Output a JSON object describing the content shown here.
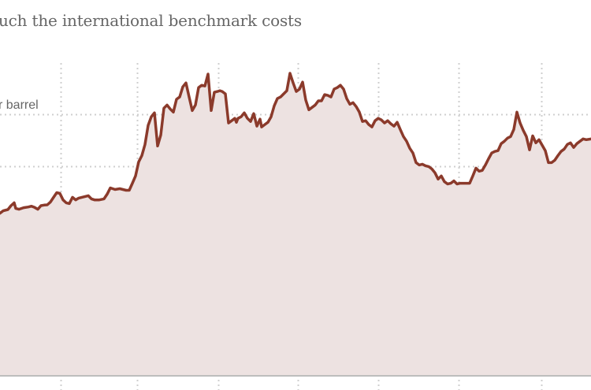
{
  "subtitle": "uch the international benchmark costs",
  "chart_data": {
    "type": "area",
    "unit_label": "r barrel",
    "grid": true,
    "line_color": "#8b3a2b",
    "fill_color": "#ede2e1",
    "grid_color": "#cfcfcf",
    "axis_color": "#bdbdbd",
    "ylim": [
      0,
      130
    ],
    "gridline_values": [
      20,
      40,
      60,
      80,
      100
    ],
    "unit_label_at": 104,
    "xlim": [
      0,
      750
    ],
    "vertical_grid_x": [
      77,
      174,
      277,
      378,
      480,
      582,
      687
    ],
    "x": [
      0,
      4,
      10,
      14,
      18,
      20,
      24,
      30,
      36,
      40,
      44,
      48,
      52,
      56,
      60,
      64,
      68,
      72,
      76,
      80,
      84,
      88,
      92,
      96,
      100,
      104,
      108,
      112,
      116,
      120,
      126,
      132,
      136,
      140,
      146,
      152,
      156,
      160,
      164,
      168,
      172,
      176,
      180,
      184,
      188,
      192,
      196,
      200,
      204,
      208,
      212,
      216,
      220,
      224,
      228,
      232,
      236,
      240,
      244,
      248,
      252,
      256,
      260,
      264,
      268,
      272,
      276,
      279,
      282,
      286,
      290,
      294,
      298,
      300,
      302,
      306,
      310,
      314,
      318,
      322,
      326,
      330,
      332,
      336,
      340,
      344,
      348,
      352,
      356,
      360,
      364,
      368,
      372,
      376,
      380,
      384,
      388,
      392,
      396,
      400,
      404,
      408,
      412,
      416,
      420,
      424,
      428,
      432,
      436,
      440,
      444,
      448,
      452,
      456,
      460,
      464,
      468,
      472,
      476,
      480,
      484,
      488,
      492,
      496,
      500,
      504,
      508,
      512,
      516,
      520,
      524,
      528,
      532,
      536,
      540,
      544,
      548,
      552,
      556,
      560,
      564,
      568,
      572,
      576,
      580,
      584,
      588,
      592,
      596,
      600,
      604,
      608,
      612,
      616,
      620,
      624,
      628,
      632,
      636,
      640,
      644,
      648,
      652,
      656,
      660,
      664,
      668,
      672,
      676,
      680,
      684,
      688,
      692,
      696,
      700,
      704,
      708,
      712,
      716,
      720,
      724,
      728,
      732,
      736,
      740,
      744,
      750
    ],
    "y": [
      62.1,
      63.0,
      63.5,
      65.0,
      66.1,
      63.9,
      63.6,
      64.2,
      64.5,
      64.8,
      64.3,
      63.6,
      65.0,
      65.2,
      65.3,
      66.4,
      68.2,
      70.0,
      69.7,
      67.2,
      66.1,
      65.8,
      68.2,
      67.2,
      67.9,
      68.2,
      68.5,
      68.8,
      67.6,
      67.2,
      67.2,
      67.6,
      69.4,
      71.8,
      71.2,
      71.5,
      71.2,
      70.9,
      70.9,
      73.6,
      76.4,
      81.8,
      84.2,
      88.5,
      95.8,
      99.1,
      100.6,
      87.9,
      92.1,
      102.4,
      103.6,
      102.1,
      100.9,
      105.8,
      106.7,
      110.6,
      112.1,
      106.7,
      101.5,
      103.6,
      110.3,
      111.2,
      110.9,
      115.5,
      101.5,
      108.5,
      108.8,
      109.1,
      108.8,
      107.9,
      96.7,
      97.6,
      98.5,
      97.0,
      98.5,
      99.1,
      100.6,
      98.5,
      97.3,
      100.3,
      95.5,
      98.2,
      95.2,
      96.1,
      97.0,
      99.1,
      103.3,
      106.1,
      106.7,
      107.9,
      109.1,
      115.8,
      112.1,
      108.8,
      109.7,
      112.4,
      105.5,
      101.8,
      102.7,
      103.6,
      105.2,
      105.2,
      107.6,
      107.3,
      106.7,
      109.7,
      110.3,
      111.2,
      109.7,
      106.1,
      103.9,
      104.5,
      103.0,
      100.9,
      97.3,
      97.6,
      96.1,
      95.2,
      97.6,
      98.5,
      97.9,
      96.7,
      97.6,
      96.4,
      95.5,
      97.0,
      94.2,
      91.5,
      89.7,
      87.0,
      85.2,
      81.5,
      80.6,
      80.9,
      80.3,
      80.0,
      79.1,
      77.6,
      75.2,
      76.4,
      74.2,
      73.3,
      73.6,
      74.5,
      73.3,
      73.6,
      73.6,
      73.6,
      73.6,
      76.4,
      79.4,
      78.2,
      78.5,
      80.6,
      83.0,
      85.2,
      85.8,
      86.1,
      88.8,
      89.7,
      90.9,
      91.5,
      94.2,
      100.9,
      96.7,
      93.9,
      91.5,
      86.4,
      91.8,
      89.1,
      90.3,
      88.2,
      86.1,
      81.5,
      81.5,
      82.4,
      84.2,
      85.8,
      86.7,
      88.5,
      89.1,
      87.3,
      88.8,
      89.7,
      90.6,
      90.3,
      90.6
    ]
  }
}
